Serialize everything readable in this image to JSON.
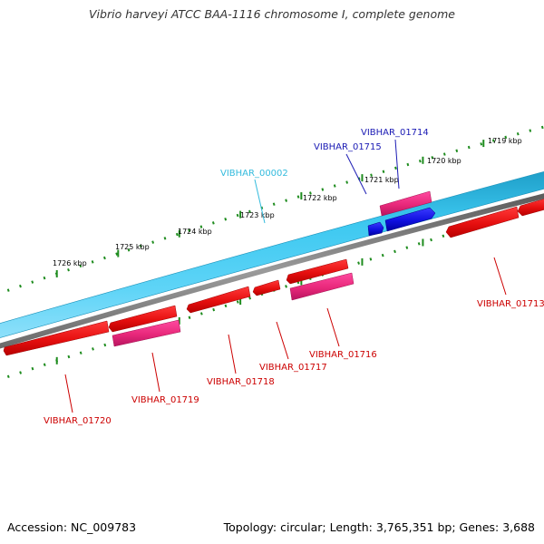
{
  "title": "Vibrio harveyi ATCC BAA-1116 chromosome I, complete genome",
  "footer": {
    "accession": "Accession: NC_009783",
    "summary": "Topology: circular; Length: 3,765,351 bp; Genes: 3,688"
  },
  "colors": {
    "background": "#ffffff",
    "forward_strand_band": "#3cc8f0",
    "forward_strand_edge": "#1e9ec8",
    "backbone_line": "#808080",
    "tick_marks": "#1e8c1e",
    "cds_red": "#ee1111",
    "cds_magenta": "#e8287a",
    "cds_blue": "#1010e0",
    "label_red": "#cc0000",
    "label_blue": "#1a1ab4",
    "label_cyan": "#33bbdd"
  },
  "scale": {
    "kbp_labels": [
      "1719 kbp",
      "1720 kbp",
      "1721 kbp",
      "1722 kbp",
      "1723 kbp",
      "1724 kbp",
      "1725 kbp",
      "1726 kbp"
    ]
  },
  "genes": [
    {
      "id": "VIBHAR_01720",
      "label": "VIBHAR_01720",
      "color": "#cc0000"
    },
    {
      "id": "VIBHAR_01719",
      "label": "VIBHAR_01719",
      "color": "#cc0000"
    },
    {
      "id": "VIBHAR_01718",
      "label": "VIBHAR_01718",
      "color": "#cc0000"
    },
    {
      "id": "VIBHAR_01717",
      "label": "VIBHAR_01717",
      "color": "#cc0000"
    },
    {
      "id": "VIBHAR_01716",
      "label": "VIBHAR_01716",
      "color": "#cc0000"
    },
    {
      "id": "VIBHAR_01713",
      "label": "VIBHAR_01713",
      "color": "#cc0000"
    },
    {
      "id": "VIBHAR_01715",
      "label": "VIBHAR_01715",
      "color": "#1a1ab4"
    },
    {
      "id": "VIBHAR_01714",
      "label": "VIBHAR_01714",
      "color": "#1a1ab4"
    },
    {
      "id": "VIBHAR_00002",
      "label": "VIBHAR_00002",
      "color": "#33bbdd"
    }
  ]
}
